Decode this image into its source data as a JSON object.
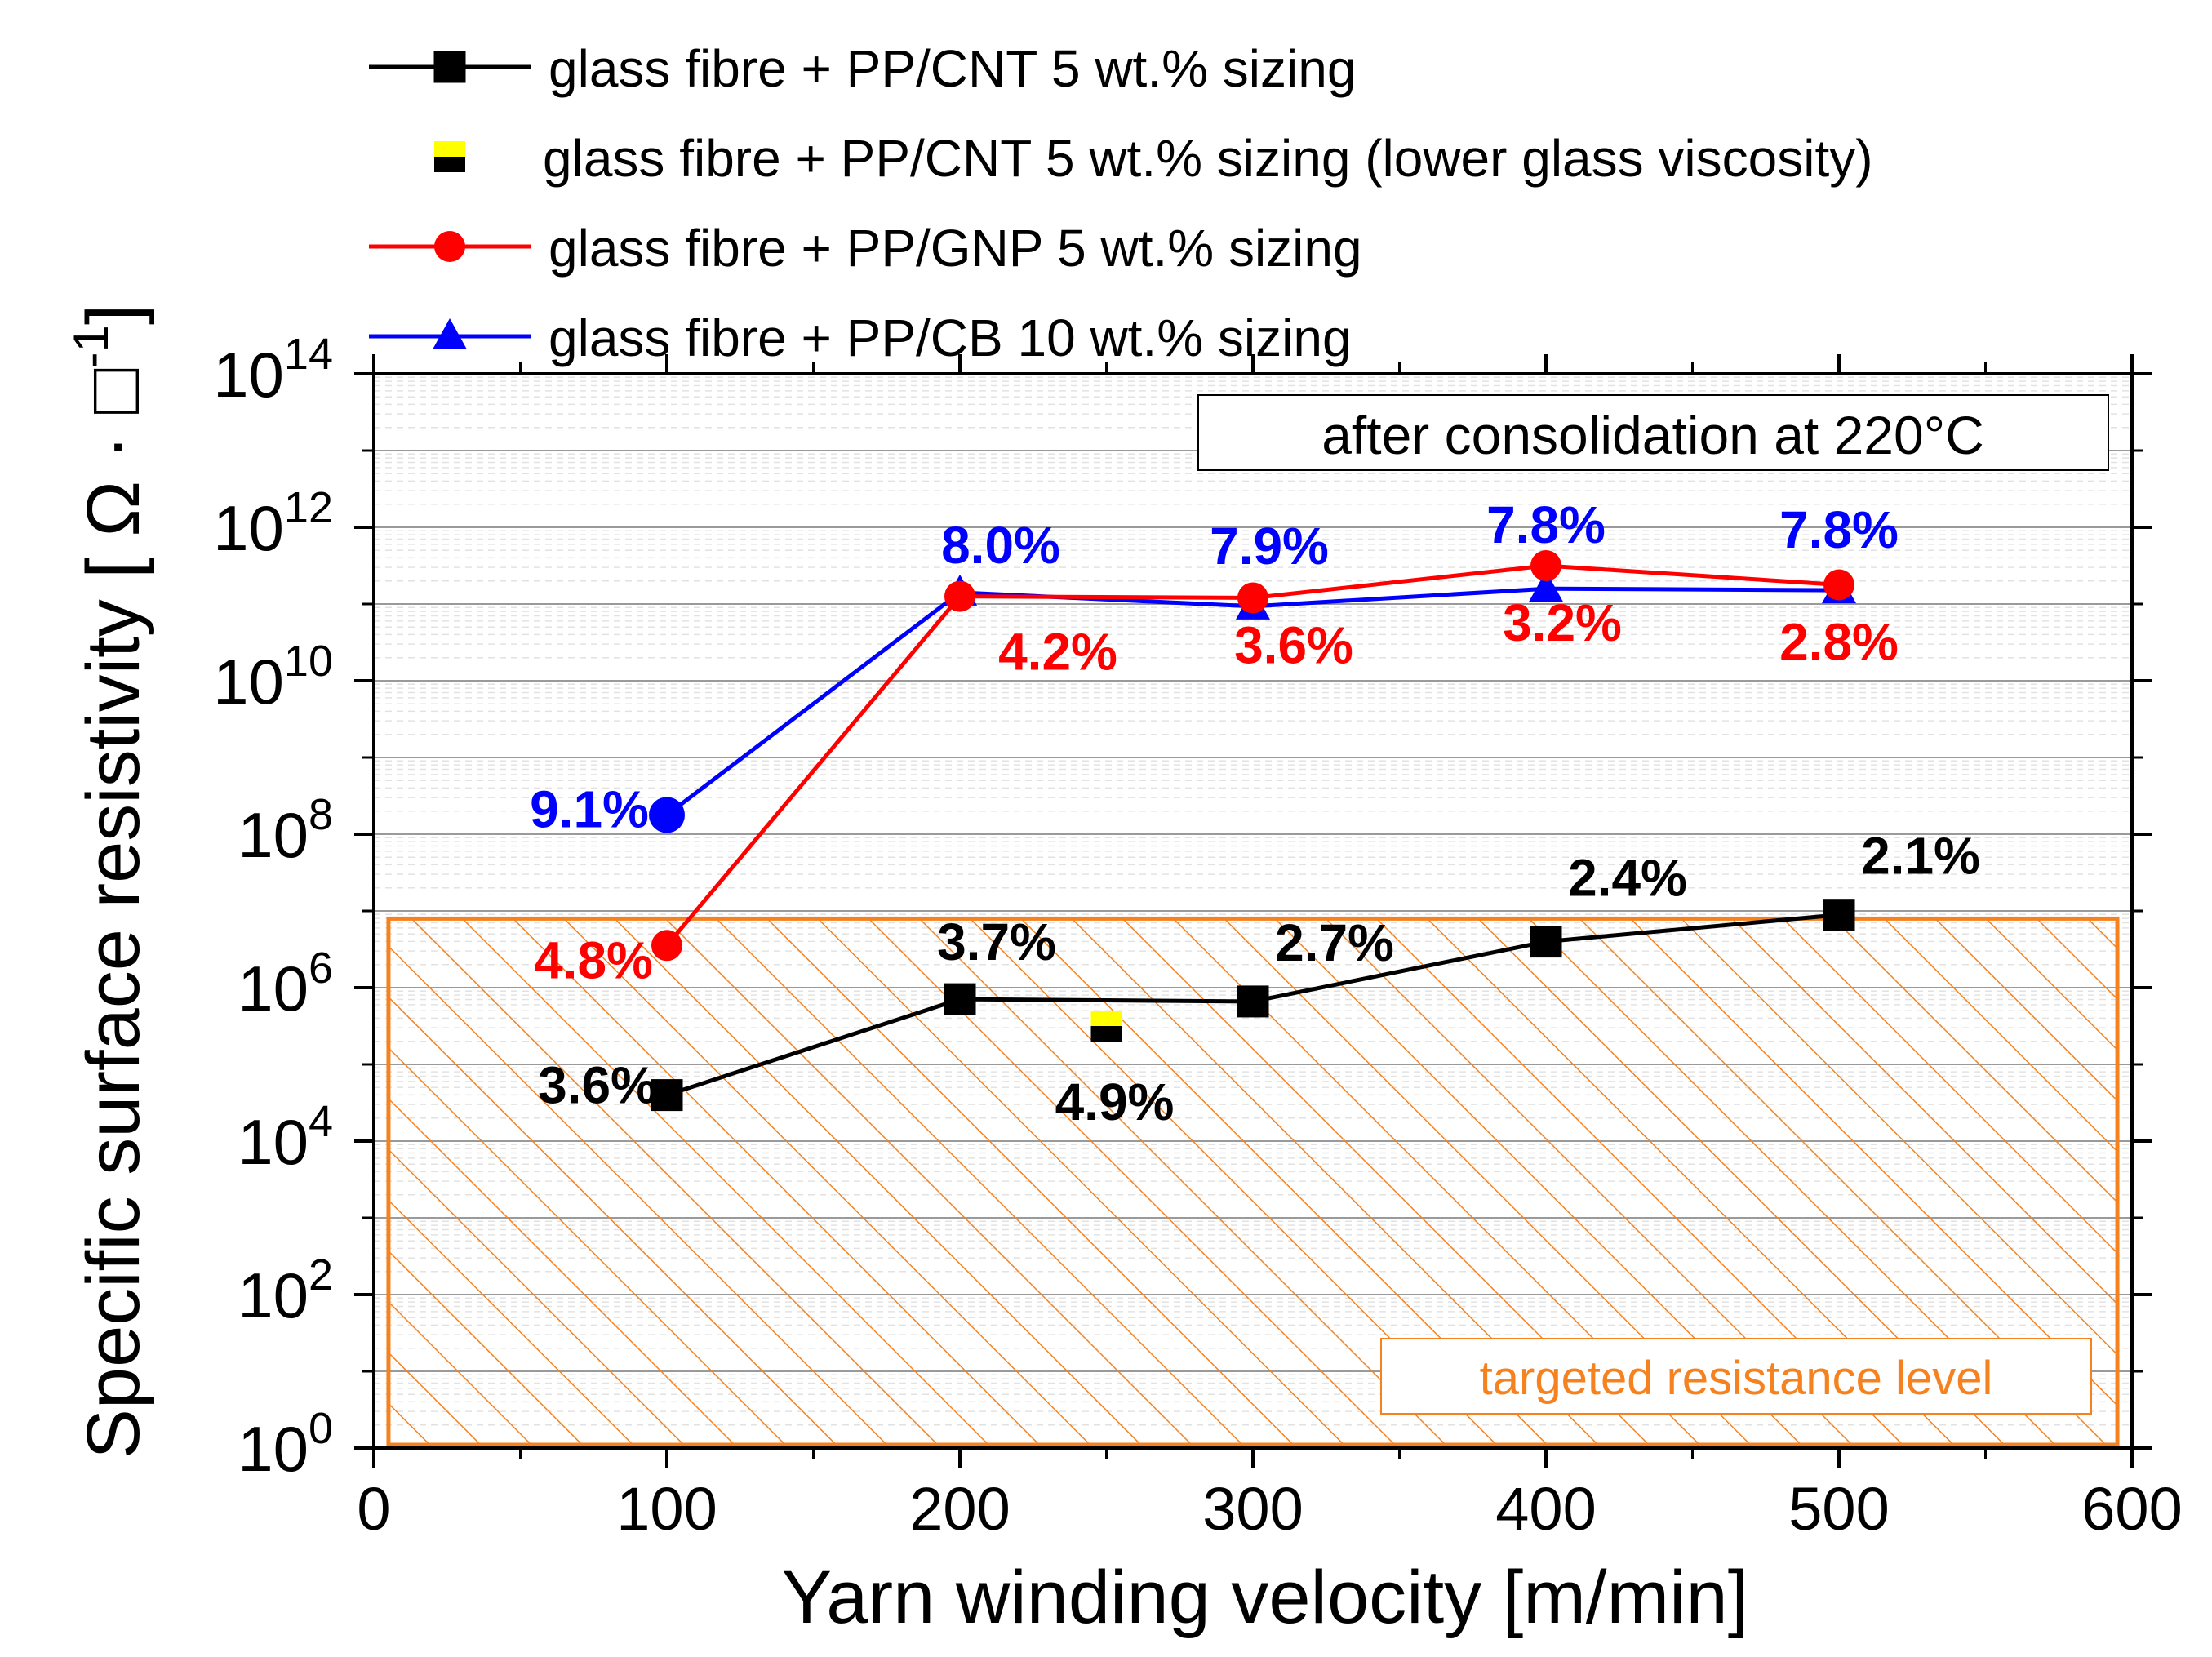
{
  "chart_data": {
    "type": "line",
    "title": "",
    "annotation_box": "after consolidation at 220°C",
    "target_label": "targeted resistance level",
    "xlabel": "Yarn winding velocity [m/min]",
    "ylabel": "Specific surface resistivity [ Ω · □",
    "ylabel_sup": "-1",
    "ylabel_close": "]",
    "xlim": [
      0,
      600
    ],
    "ylim_log10": [
      0,
      14
    ],
    "xticks": [
      "0",
      "100",
      "200",
      "300",
      "400",
      "500",
      "600"
    ],
    "yticks": [
      {
        "base": "10",
        "exp": "0"
      },
      {
        "base": "10",
        "exp": "2"
      },
      {
        "base": "10",
        "exp": "4"
      },
      {
        "base": "10",
        "exp": "6"
      },
      {
        "base": "10",
        "exp": "8"
      },
      {
        "base": "10",
        "exp": "10"
      },
      {
        "base": "10",
        "exp": "12"
      },
      {
        "base": "10",
        "exp": "14"
      }
    ],
    "target_region": {
      "x": [
        5,
        595
      ],
      "y_log10": [
        0,
        6.9
      ]
    },
    "series": [
      {
        "name": "glass fibre + PP/CNT 5 wt.% sizing",
        "color": "#000000",
        "marker": "square",
        "x": [
          100,
          200,
          300,
          400,
          500
        ],
        "y_log10": [
          4.6,
          5.85,
          5.82,
          6.6,
          6.95
        ],
        "labels": [
          "3.6%",
          "3.7%",
          "2.7%",
          "2.4%",
          "2.1%"
        ],
        "label_color": "#000000"
      },
      {
        "name": "glass fibre + PP/CNT 5 wt.% sizing (lower glass viscosity)",
        "color": "#000000",
        "marker": "half-square-yellow",
        "x": [
          250
        ],
        "y_log10": [
          5.5
        ],
        "labels": [
          "4.9%"
        ],
        "label_color": "#000000"
      },
      {
        "name": "glass fibre + PP/GNP 5 wt.% sizing",
        "color": "#ff0000",
        "marker": "circle",
        "x": [
          100,
          200,
          300,
          400,
          500
        ],
        "y_log10": [
          6.55,
          11.1,
          11.08,
          11.5,
          11.25
        ],
        "labels": [
          "4.8%",
          "4.2%",
          "3.6%",
          "3.2%",
          "2.8%"
        ],
        "label_color": "#ff0000"
      },
      {
        "name": "glass fibre + PP/CB  10 wt.% sizing",
        "color": "#0000ff",
        "marker": "triangle",
        "x": [
          100,
          200,
          300,
          400,
          500
        ],
        "y_log10": [
          8.25,
          11.15,
          10.97,
          11.2,
          11.18
        ],
        "labels": [
          "9.1%",
          "8.0%",
          "7.9%",
          "7.8%",
          "7.8%"
        ],
        "label_color": "#0000ff"
      }
    ],
    "colors": {
      "target": "#f5821f",
      "grid": "#cccccc",
      "yellow": "#ffff00"
    }
  }
}
